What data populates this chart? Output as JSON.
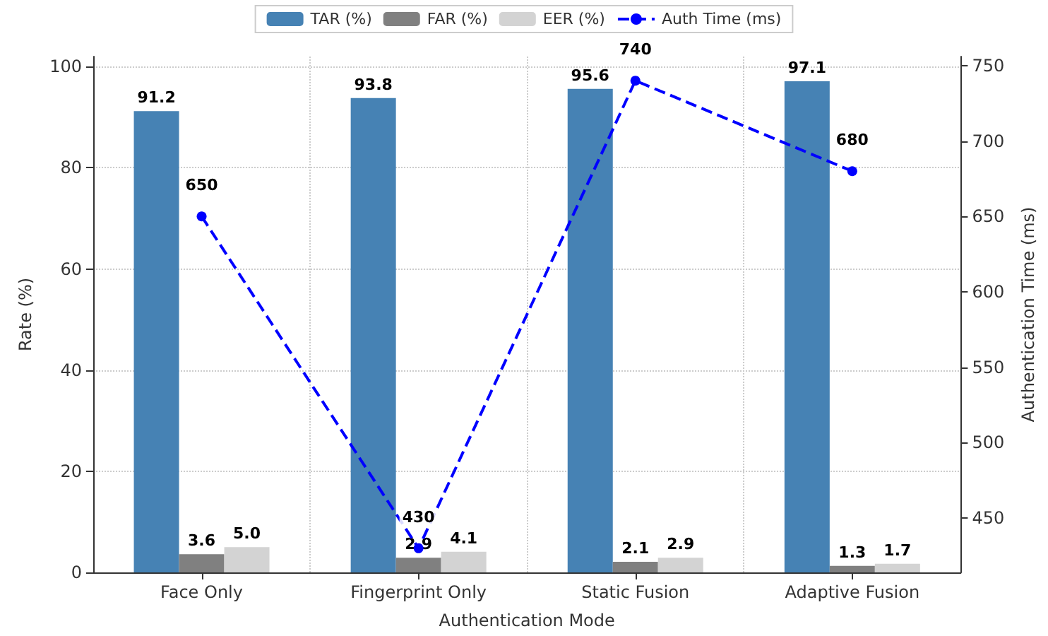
{
  "chart_data": {
    "type": "bar",
    "xlabel": "Authentication Mode",
    "ylabel": "Rate (%)",
    "y2label": "Authentication Time (ms)",
    "categories": [
      "Face Only",
      "Fingerprint Only",
      "Static Fusion",
      "Adaptive Fusion"
    ],
    "series": [
      {
        "name": "TAR (%)",
        "color": "#4682b4",
        "values": [
          91.2,
          93.8,
          95.6,
          97.1
        ]
      },
      {
        "name": "FAR (%)",
        "color": "#808080",
        "values": [
          3.6,
          2.9,
          2.1,
          1.3
        ]
      },
      {
        "name": "EER (%)",
        "color": "#d3d3d3",
        "values": [
          5.0,
          4.1,
          2.9,
          1.7
        ],
        "value_labels": [
          "5.0",
          "4.1",
          "2.9",
          "1.7"
        ]
      },
      {
        "name": "Auth Time (ms)",
        "type": "line",
        "axis": "y2",
        "color": "#0000ff",
        "marker": "circle",
        "line_style": "dashed",
        "values": [
          650,
          430,
          740,
          680
        ]
      }
    ],
    "ylim": [
      0,
      102
    ],
    "yticks": [
      0,
      20,
      40,
      60,
      80,
      100
    ],
    "y2lim": [
      414,
      756
    ],
    "y2ticks": [
      450,
      500,
      550,
      600,
      650,
      700,
      750
    ],
    "data_labels": true,
    "grid": true,
    "legend": "top"
  }
}
